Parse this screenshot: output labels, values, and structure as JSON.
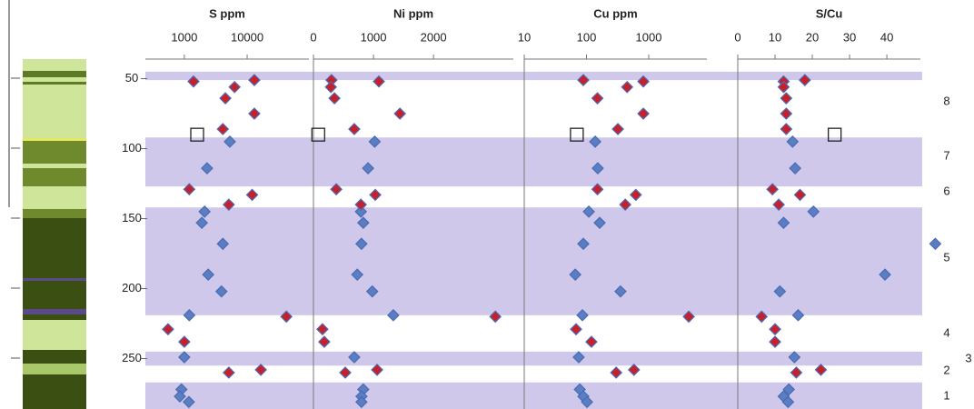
{
  "depth_axis": {
    "ylim": [
      36,
      286
    ],
    "yticks": [
      50,
      100,
      150,
      200,
      250
    ]
  },
  "bands": [
    [
      45,
      51
    ],
    [
      92,
      127
    ],
    [
      142,
      219
    ],
    [
      245,
      255
    ],
    [
      267,
      286
    ]
  ],
  "zone_labels": [
    "8",
    "7",
    "6",
    "5",
    "4",
    "3",
    "2",
    "1"
  ],
  "chart_data": [
    {
      "type": "scatter",
      "title": "S ppm",
      "log_x": true,
      "xlim": [
        240,
        96000
      ],
      "xticks": [
        1000,
        10000
      ],
      "series": [
        {
          "marker": "diamond",
          "color": "#5b7ec2",
          "x": [
            5300,
            2300,
            2100,
            1900,
            4100,
            2400,
            3900,
            1200,
            1000,
            900,
            850,
            1180
          ],
          "y": [
            95,
            114,
            145,
            153,
            168,
            190,
            202,
            219,
            249,
            272,
            277,
            281
          ]
        },
        {
          "marker": "diamond",
          "color": "#c8202a",
          "x": [
            13000,
            1400,
            6300,
            4500,
            13000,
            4100,
            1200,
            12000,
            5100,
            42000,
            550,
            1000,
            16500,
            5100
          ],
          "y": [
            51,
            52,
            56,
            64,
            75,
            86,
            129,
            133,
            140,
            220,
            229,
            238,
            258,
            260
          ]
        },
        {
          "marker": "square",
          "color": "#222222",
          "x": [
            1600
          ],
          "y": [
            90
          ]
        }
      ]
    },
    {
      "type": "scatter",
      "title": "Ni ppm",
      "log_x": false,
      "xlim": [
        0,
        3330
      ],
      "xticks": [
        0,
        1000,
        2000
      ],
      "series": [
        {
          "marker": "diamond",
          "color": "#5b7ec2",
          "x": [
            1020,
            910,
            790,
            830,
            800,
            730,
            980,
            1330,
            680,
            830,
            800,
            800
          ],
          "y": [
            95,
            114,
            145,
            153,
            168,
            190,
            202,
            219,
            249,
            272,
            277,
            281
          ]
        },
        {
          "marker": "diamond",
          "color": "#c8202a",
          "x": [
            300,
            1090,
            290,
            350,
            1440,
            680,
            380,
            1030,
            790,
            3030,
            150,
            180,
            1060,
            530
          ],
          "y": [
            51,
            52,
            56,
            64,
            75,
            86,
            129,
            133,
            140,
            220,
            229,
            238,
            258,
            260
          ]
        },
        {
          "marker": "square",
          "color": "#222222",
          "x": [
            80
          ],
          "y": [
            90
          ]
        }
      ]
    },
    {
      "type": "scatter",
      "title": "Cu ppm",
      "log_x": true,
      "xlim": [
        10,
        8600
      ],
      "xticks": [
        10,
        100,
        1000
      ],
      "series": [
        {
          "marker": "diamond",
          "color": "#5b7ec2",
          "x": [
            138,
            152,
            109,
            163,
            89,
            66,
            352,
            86,
            75,
            78,
            89,
            102
          ],
          "y": [
            95,
            114,
            145,
            153,
            168,
            190,
            202,
            219,
            249,
            272,
            277,
            281
          ]
        },
        {
          "marker": "diamond",
          "color": "#c8202a",
          "x": [
            89,
            820,
            450,
            150,
            820,
            320,
            150,
            620,
            420,
            4400,
            68,
            120,
            580,
            300
          ],
          "y": [
            51,
            52,
            56,
            64,
            75,
            86,
            129,
            133,
            140,
            220,
            229,
            238,
            258,
            260
          ]
        },
        {
          "marker": "square",
          "color": "#222222",
          "x": [
            70
          ],
          "y": [
            90
          ]
        }
      ]
    },
    {
      "type": "scatter",
      "title": "S/Cu",
      "log_x": false,
      "xlim": [
        0,
        49
      ],
      "xticks": [
        0,
        10,
        20,
        30,
        40
      ],
      "series": [
        {
          "marker": "diamond",
          "color": "#5b7ec2",
          "x": [
            14.7,
            15.4,
            20.3,
            12.3,
            53,
            39.5,
            11.3,
            16.2,
            15.2,
            13.7,
            12.3,
            13.5
          ],
          "y": [
            95,
            114,
            145,
            153,
            168,
            190,
            202,
            219,
            249,
            272,
            277,
            281
          ]
        },
        {
          "marker": "diamond",
          "color": "#c8202a",
          "x": [
            18,
            12.3,
            12.3,
            13,
            13,
            13,
            9.3,
            16.7,
            11,
            6.4,
            10,
            10,
            22.3,
            15.7
          ],
          "y": [
            51,
            52,
            56,
            64,
            75,
            86,
            129,
            133,
            140,
            220,
            229,
            238,
            258,
            260
          ]
        },
        {
          "marker": "square",
          "color": "#222222",
          "x": [
            26
          ],
          "y": [
            90
          ]
        }
      ]
    }
  ]
}
